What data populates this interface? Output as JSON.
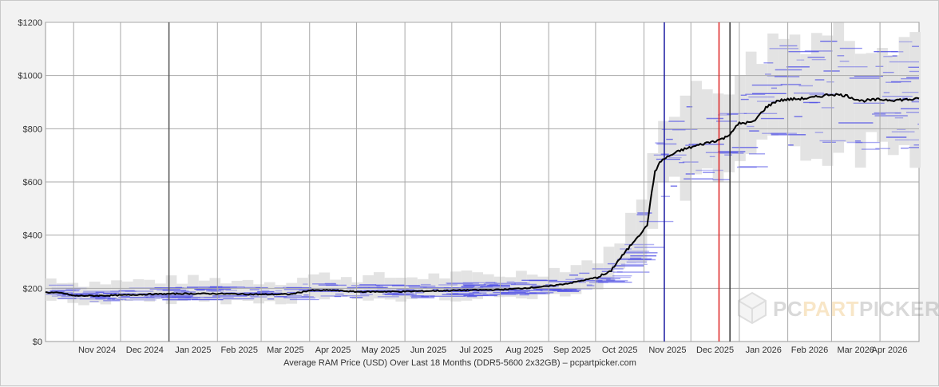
{
  "chart_data": {
    "type": "line",
    "title": "",
    "xlabel": "Average RAM Price (USD) Over Last 18 Months (DDR5-5600 2x32GB) – pcpartpicker.com",
    "ylabel": "",
    "ylim": [
      0,
      1200
    ],
    "y_ticks": [
      0,
      200,
      400,
      600,
      800,
      1000,
      1200
    ],
    "y_tick_labels": [
      "$0",
      "$200",
      "$400",
      "$600",
      "$800",
      "$1000",
      "$1200"
    ],
    "x_range": [
      "2024-10-14",
      "2026-04-26"
    ],
    "x_tick_labels": [
      "Nov 2024",
      "Dec 2024",
      "Jan 2025",
      "Feb 2025",
      "Mar 2025",
      "Apr 2025",
      "May 2025",
      "Jun 2025",
      "Jul 2025",
      "Aug 2025",
      "Sep 2025",
      "Oct 2025",
      "Nov 2025",
      "Dec 2025",
      "Jan 2026",
      "Feb 2026",
      "Mar 2026",
      "Apr 2026"
    ],
    "grid": true,
    "series": [
      {
        "color": "#000000",
        "points": [
          [
            "2024-10-14",
            185
          ],
          [
            "2024-10-25",
            182
          ],
          [
            "2024-11-01",
            172
          ],
          [
            "2024-11-15",
            172
          ],
          [
            "2024-12-01",
            174
          ],
          [
            "2024-12-20",
            178
          ],
          [
            "2025-01-10",
            180
          ],
          [
            "2025-02-01",
            180
          ],
          [
            "2025-03-01",
            177
          ],
          [
            "2025-03-20",
            178
          ],
          [
            "2025-04-01",
            192
          ],
          [
            "2025-04-15",
            193
          ],
          [
            "2025-05-01",
            187
          ],
          [
            "2025-06-01",
            188
          ],
          [
            "2025-07-01",
            192
          ],
          [
            "2025-08-01",
            195
          ],
          [
            "2025-08-15",
            200
          ],
          [
            "2025-09-01",
            208
          ],
          [
            "2025-09-15",
            220
          ],
          [
            "2025-10-01",
            240
          ],
          [
            "2025-10-10",
            260
          ],
          [
            "2025-10-15",
            300
          ],
          [
            "2025-10-22",
            350
          ],
          [
            "2025-10-27",
            390
          ],
          [
            "2025-11-01",
            420
          ],
          [
            "2025-11-03",
            440
          ],
          [
            "2025-11-06",
            560
          ],
          [
            "2025-11-08",
            640
          ],
          [
            "2025-11-12",
            680
          ],
          [
            "2025-11-18",
            700
          ],
          [
            "2025-11-25",
            720
          ],
          [
            "2025-12-01",
            730
          ],
          [
            "2025-12-10",
            745
          ],
          [
            "2025-12-20",
            760
          ],
          [
            "2025-12-24",
            770
          ],
          [
            "2026-01-01",
            820
          ],
          [
            "2026-01-10",
            825
          ],
          [
            "2026-01-18",
            880
          ],
          [
            "2026-01-25",
            905
          ],
          [
            "2026-02-01",
            910
          ],
          [
            "2026-02-15",
            915
          ],
          [
            "2026-03-01",
            930
          ],
          [
            "2026-03-10",
            925
          ],
          [
            "2026-03-20",
            905
          ],
          [
            "2026-04-01",
            910
          ],
          [
            "2026-04-10",
            908
          ],
          [
            "2026-04-20",
            910
          ],
          [
            "2026-04-26",
            912
          ]
        ]
      }
    ],
    "markers": [
      {
        "date": "2025-01-01",
        "color": "#555555"
      },
      {
        "date": "2025-11-14",
        "color": "#1a1aa0"
      },
      {
        "date": "2025-12-19",
        "color": "#dd2222"
      },
      {
        "date": "2025-12-26",
        "color": "#333333"
      }
    ],
    "colors": {
      "line": "#000000",
      "band": "#e3e3e3",
      "price_ticks": "#4d4de6",
      "grid": "#a8a8a8",
      "plot_bg": "#ffffff"
    }
  },
  "watermark": {
    "part1": "PC",
    "part2": "PART",
    "part3": "PICKER",
    "icon": "box-logo-icon"
  }
}
